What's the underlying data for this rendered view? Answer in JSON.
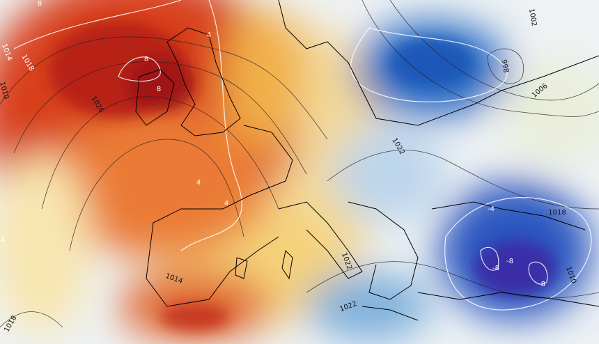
{
  "map": {
    "labels": [
      "8",
      "1014",
      "1018",
      "1010",
      "1026",
      "8",
      "8",
      "4",
      "1002",
      "998",
      "1006",
      "1022",
      "1018",
      "-4",
      "-8",
      "-8",
      "-8",
      "1014",
      "1022",
      "1018",
      "1010",
      "4",
      "4",
      "1022",
      "4"
    ]
  }
}
